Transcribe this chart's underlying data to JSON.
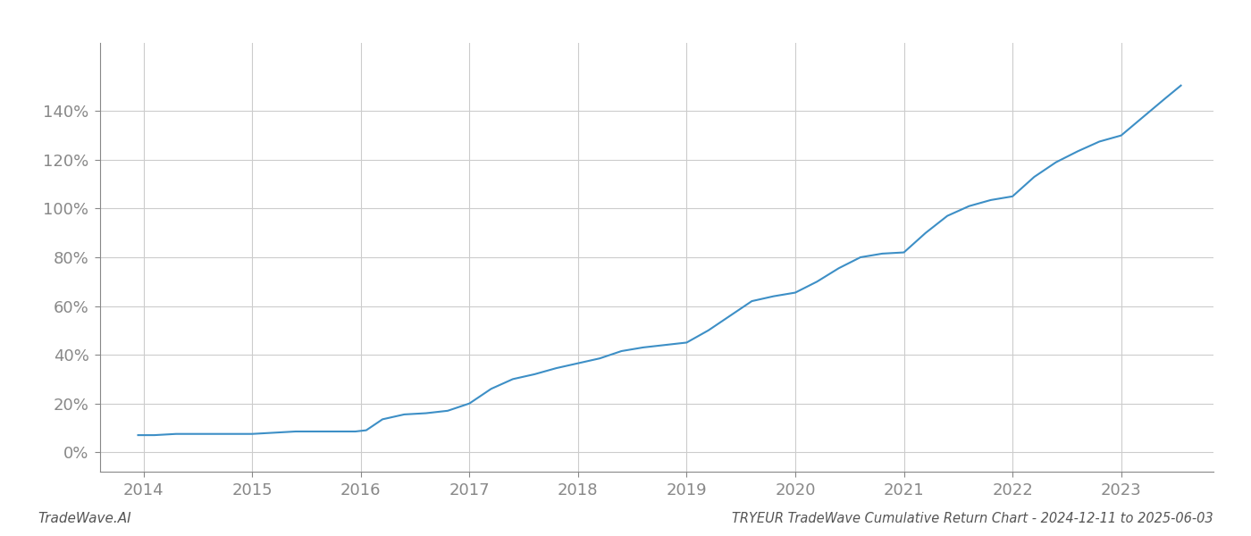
{
  "title": "TRYEUR TradeWave Cumulative Return Chart - 2024-12-11 to 2025-06-03",
  "watermark": "TradeWave.AI",
  "line_color": "#3d8fc6",
  "background_color": "#ffffff",
  "grid_color": "#cccccc",
  "x_years": [
    2014,
    2015,
    2016,
    2017,
    2018,
    2019,
    2020,
    2021,
    2022,
    2023
  ],
  "y_ticks": [
    0,
    20,
    40,
    60,
    80,
    100,
    120,
    140
  ],
  "ylim": [
    -8,
    168
  ],
  "xlim": [
    2013.6,
    2023.85
  ],
  "data_x": [
    2013.95,
    2014.1,
    2014.3,
    2014.5,
    2014.7,
    2014.9,
    2015.0,
    2015.2,
    2015.4,
    2015.6,
    2015.8,
    2015.95,
    2016.05,
    2016.2,
    2016.4,
    2016.6,
    2016.8,
    2017.0,
    2017.2,
    2017.4,
    2017.6,
    2017.8,
    2018.0,
    2018.2,
    2018.4,
    2018.6,
    2018.8,
    2019.0,
    2019.2,
    2019.4,
    2019.6,
    2019.8,
    2020.0,
    2020.2,
    2020.4,
    2020.6,
    2020.8,
    2021.0,
    2021.2,
    2021.4,
    2021.6,
    2021.8,
    2022.0,
    2022.2,
    2022.4,
    2022.6,
    2022.8,
    2023.0,
    2023.2,
    2023.4,
    2023.55
  ],
  "data_y": [
    7,
    7,
    7.5,
    7.5,
    7.5,
    7.5,
    7.5,
    8.0,
    8.5,
    8.5,
    8.5,
    8.5,
    9.0,
    13.5,
    15.5,
    16.0,
    17.0,
    20.0,
    26.0,
    30.0,
    32.0,
    34.5,
    36.5,
    38.5,
    41.5,
    43.0,
    44.0,
    45.0,
    50.0,
    56.0,
    62.0,
    64.0,
    65.5,
    70.0,
    75.5,
    80.0,
    81.5,
    82.0,
    90.0,
    97.0,
    101.0,
    103.5,
    105.0,
    113.0,
    119.0,
    123.5,
    127.5,
    130.0,
    137.5,
    145.0,
    150.5
  ],
  "title_fontsize": 10.5,
  "watermark_fontsize": 11,
  "tick_fontsize": 13,
  "tick_color": "#888888",
  "spine_color": "#888888"
}
